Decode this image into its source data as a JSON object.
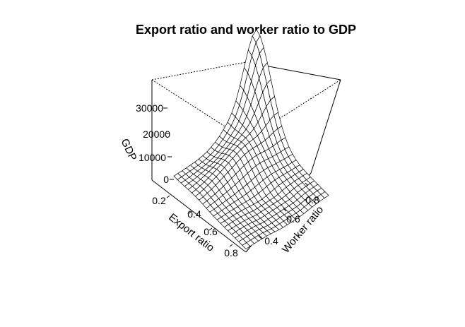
{
  "chart_data": {
    "type": "surface",
    "title": "Export ratio and worker ratio to GDP",
    "xlabel": "Export ratio",
    "ylabel": "Worker ratio",
    "zlabel": "GDP",
    "x_ticks": [
      "0.2",
      "0.4",
      "0.6",
      "0.8"
    ],
    "y_ticks": [
      "0.4",
      "0.6",
      "0.8"
    ],
    "z_ticks": [
      "0",
      "10000",
      "20000",
      "30000"
    ],
    "xlim": [
      0.1,
      0.85
    ],
    "ylim": [
      0.3,
      0.95
    ],
    "zlim": [
      0,
      38000
    ],
    "grid_size": 20,
    "surface_peak": {
      "x": 0.1,
      "y": 0.95,
      "z": 35000
    },
    "colors": {
      "line": "#000000",
      "surface_fill": "#ffffff"
    }
  }
}
